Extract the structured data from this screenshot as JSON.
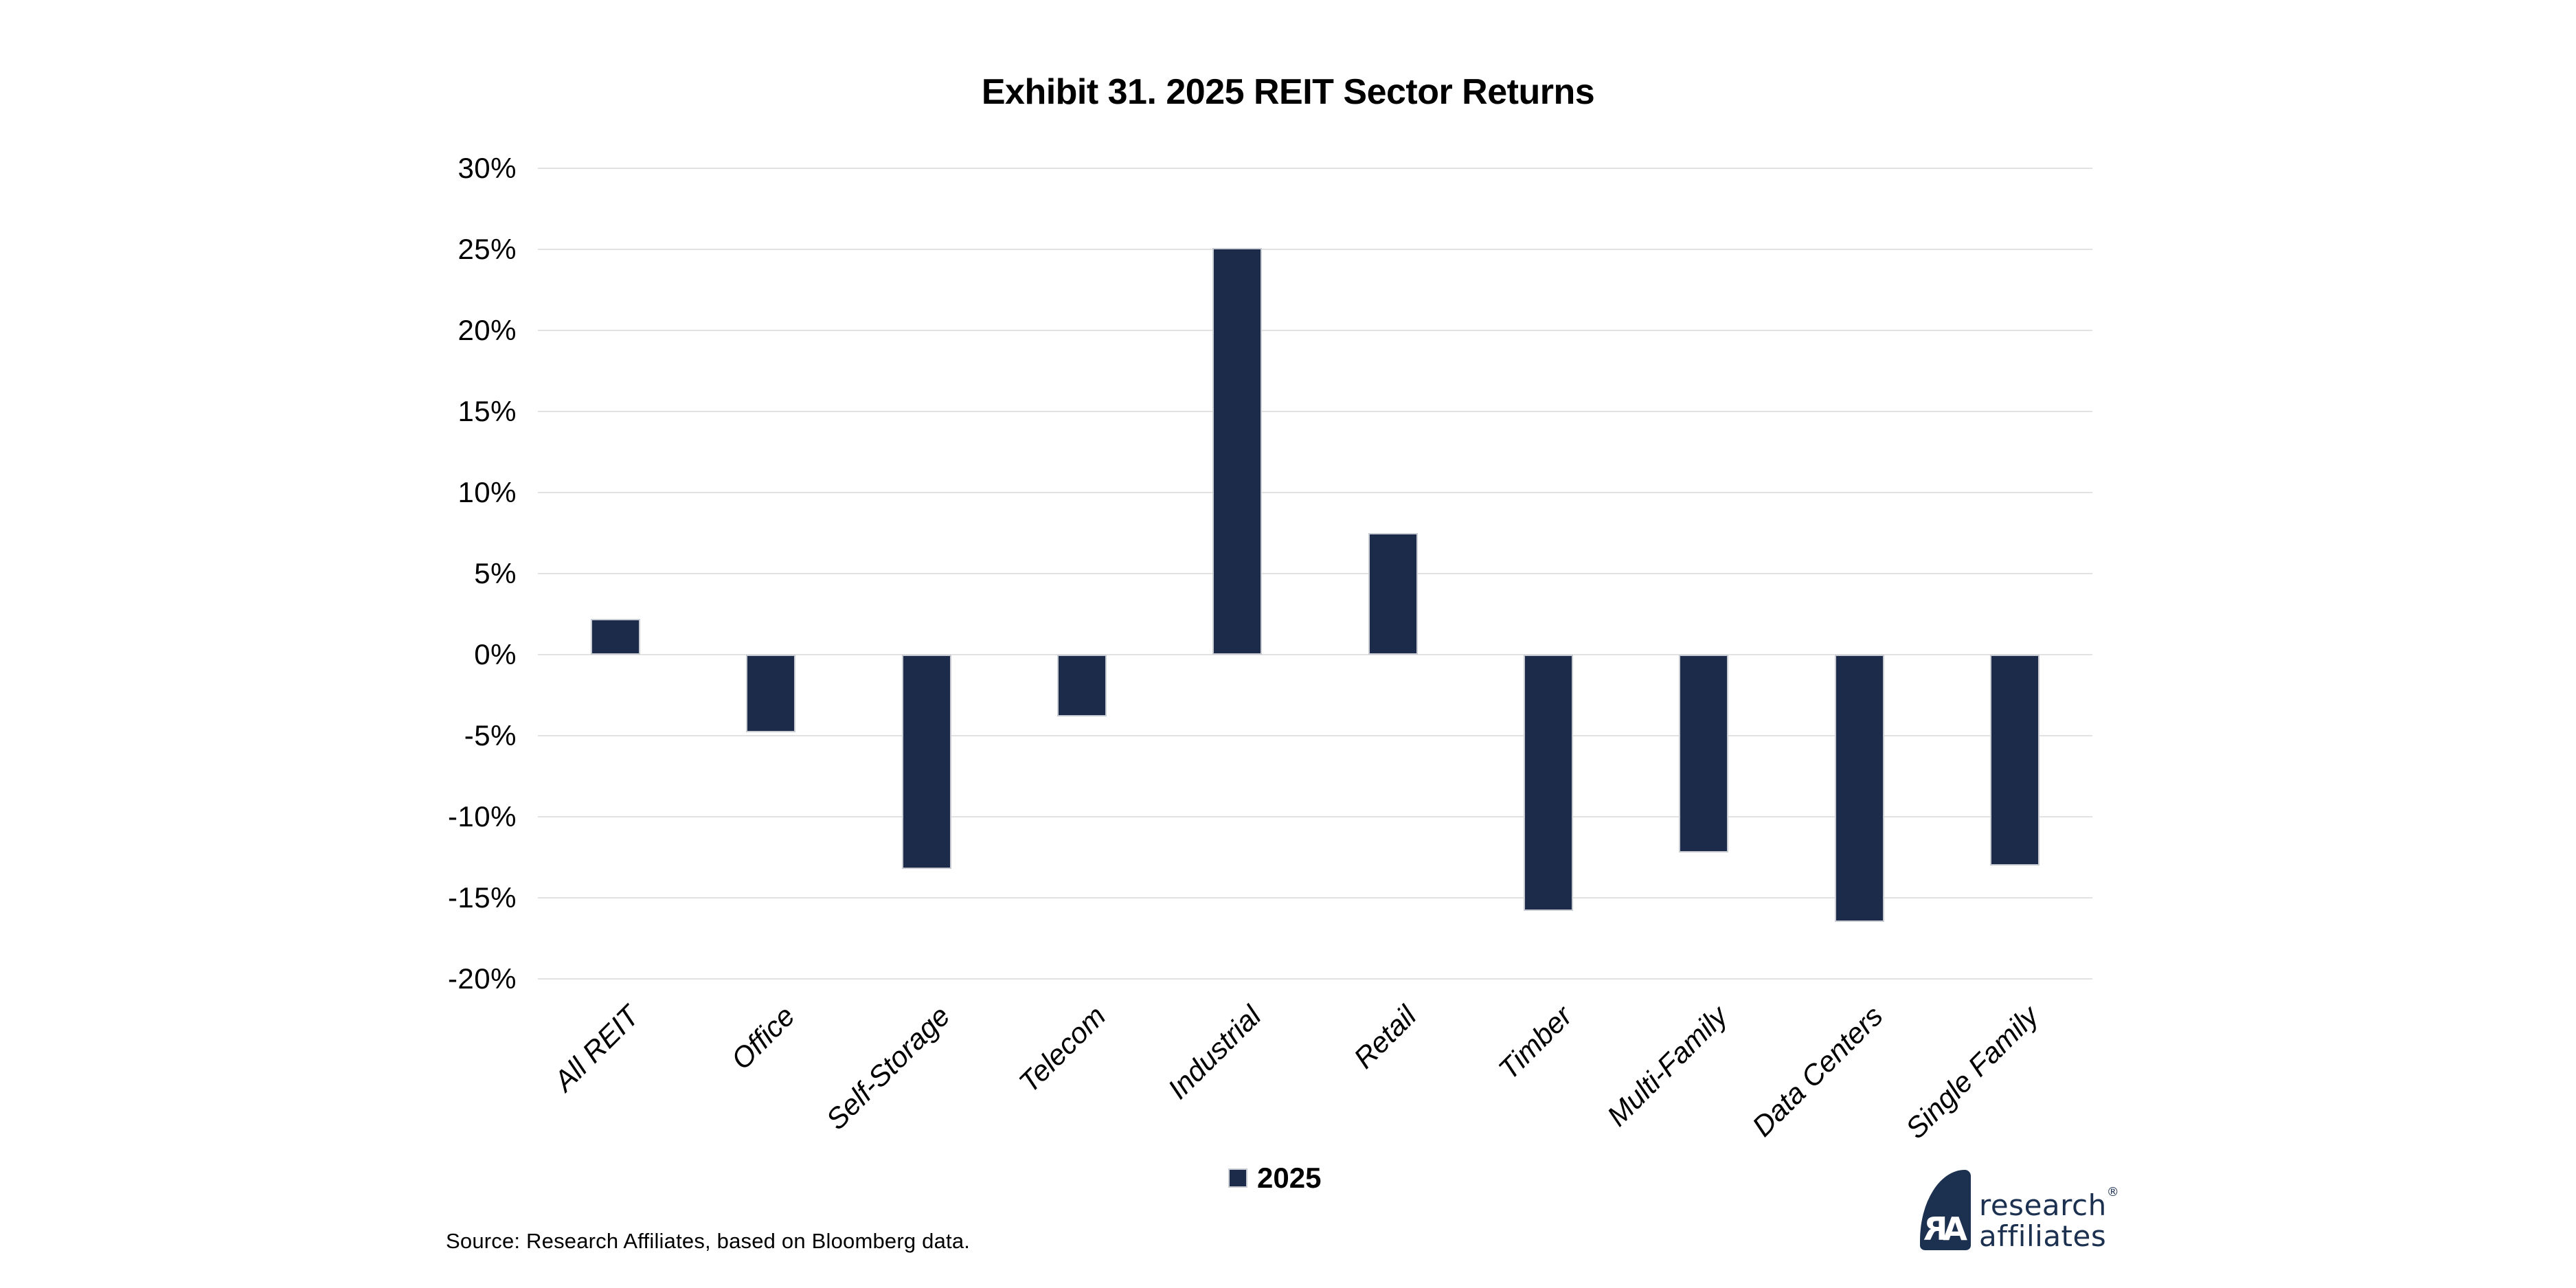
{
  "header": {
    "title": "Exhibit 31. 2025 REIT Sector Returns"
  },
  "legend": {
    "items": [
      {
        "label": "2025",
        "color": "#1b2b49"
      }
    ]
  },
  "footer": {
    "source_text": "Source: Research Affiliates, based on Bloomberg data.",
    "logo": {
      "monogram_left": "R",
      "monogram_right": "A",
      "wordmark_line1": "research",
      "registered_mark": "®",
      "wordmark_line2": "affiliates",
      "color": "#1c3050"
    }
  },
  "colors": {
    "bar_fill": "#1b2b49",
    "bar_border": "#c9cdd3",
    "gridline": "#e2e2e2",
    "text": "#000000"
  },
  "chart_data": {
    "type": "bar",
    "title": "Exhibit 31. 2025 REIT Sector Returns",
    "categories": [
      "All REIT",
      "Office",
      "Self-Storage",
      "Telecom",
      "Industrial",
      "Retail",
      "Timber",
      "Multi-Family",
      "Data Centers",
      "Single Family"
    ],
    "series": [
      {
        "name": "2025",
        "values": [
          2.2,
          -4.8,
          -13.2,
          -3.8,
          25.1,
          7.5,
          -15.8,
          -12.2,
          -16.5,
          -13.0
        ]
      }
    ],
    "xlabel": "",
    "ylabel": "",
    "ylim": [
      -20,
      30
    ],
    "ytick_step": 5,
    "ytick_suffix": "%",
    "grid": true,
    "legend_position": "bottom"
  }
}
